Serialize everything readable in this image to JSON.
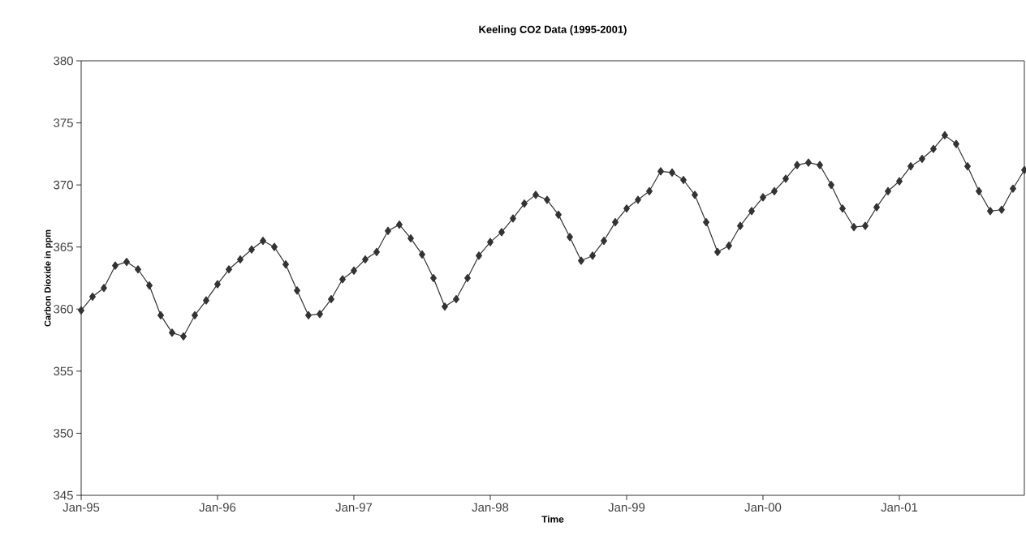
{
  "chart_data": {
    "type": "line",
    "title": "Keeling CO2 Data (1995-2001)",
    "xlabel": "Time",
    "ylabel": "Carbon Dioxide in ppm",
    "x": [
      "1995-01",
      "1995-02",
      "1995-03",
      "1995-04",
      "1995-05",
      "1995-06",
      "1995-07",
      "1995-08",
      "1995-09",
      "1995-10",
      "1995-11",
      "1995-12",
      "1996-01",
      "1996-02",
      "1996-03",
      "1996-04",
      "1996-05",
      "1996-06",
      "1996-07",
      "1996-08",
      "1996-09",
      "1996-10",
      "1996-11",
      "1996-12",
      "1997-01",
      "1997-02",
      "1997-03",
      "1997-04",
      "1997-05",
      "1997-06",
      "1997-07",
      "1997-08",
      "1997-09",
      "1997-10",
      "1997-11",
      "1997-12",
      "1998-01",
      "1998-02",
      "1998-03",
      "1998-04",
      "1998-05",
      "1998-06",
      "1998-07",
      "1998-08",
      "1998-09",
      "1998-10",
      "1998-11",
      "1998-12",
      "1999-01",
      "1999-02",
      "1999-03",
      "1999-04",
      "1999-05",
      "1999-06",
      "1999-07",
      "1999-08",
      "1999-09",
      "1999-10",
      "1999-11",
      "1999-12",
      "2000-01",
      "2000-02",
      "2000-03",
      "2000-04",
      "2000-05",
      "2000-06",
      "2000-07",
      "2000-08",
      "2000-09",
      "2000-10",
      "2000-11",
      "2000-12",
      "2001-01",
      "2001-02",
      "2001-03",
      "2001-04",
      "2001-05",
      "2001-06",
      "2001-07",
      "2001-08",
      "2001-09",
      "2001-10",
      "2001-11",
      "2001-12"
    ],
    "series": [
      {
        "color": "#333333",
        "values": [
          359.9,
          361.0,
          361.7,
          363.5,
          363.8,
          363.2,
          361.9,
          359.5,
          358.1,
          357.8,
          359.5,
          360.7,
          362.0,
          363.2,
          364.0,
          364.8,
          365.5,
          365.0,
          363.6,
          361.5,
          359.5,
          359.6,
          360.8,
          362.4,
          363.1,
          364.0,
          364.6,
          366.3,
          366.8,
          365.7,
          364.4,
          362.5,
          360.2,
          360.8,
          362.5,
          364.3,
          365.4,
          366.2,
          367.3,
          368.5,
          369.2,
          368.8,
          367.6,
          365.8,
          363.9,
          364.3,
          365.5,
          367.0,
          368.1,
          368.8,
          369.5,
          371.1,
          371.0,
          370.4,
          369.2,
          367.0,
          364.6,
          365.1,
          366.7,
          367.9,
          369.0,
          369.5,
          370.5,
          371.6,
          371.8,
          371.6,
          370.0,
          368.1,
          366.6,
          366.7,
          368.2,
          369.5,
          370.3,
          371.5,
          372.1,
          372.9,
          374.0,
          373.3,
          371.5,
          369.5,
          367.9,
          368.0,
          369.7,
          371.2
        ]
      }
    ],
    "xlim": [
      "1995-01",
      "2001-12"
    ],
    "xticks": [
      {
        "value": "1995-01",
        "label": "Jan-95"
      },
      {
        "value": "1996-01",
        "label": "Jan-96"
      },
      {
        "value": "1997-01",
        "label": "Jan-97"
      },
      {
        "value": "1998-01",
        "label": "Jan-98"
      },
      {
        "value": "1999-01",
        "label": "Jan-99"
      },
      {
        "value": "2000-01",
        "label": "Jan-00"
      },
      {
        "value": "2001-01",
        "label": "Jan-01"
      }
    ],
    "ylim": [
      345,
      380
    ],
    "yticks": [
      345,
      350,
      355,
      360,
      365,
      370,
      375,
      380
    ],
    "marker": "diamond",
    "line_style": "solid",
    "grid": false
  }
}
